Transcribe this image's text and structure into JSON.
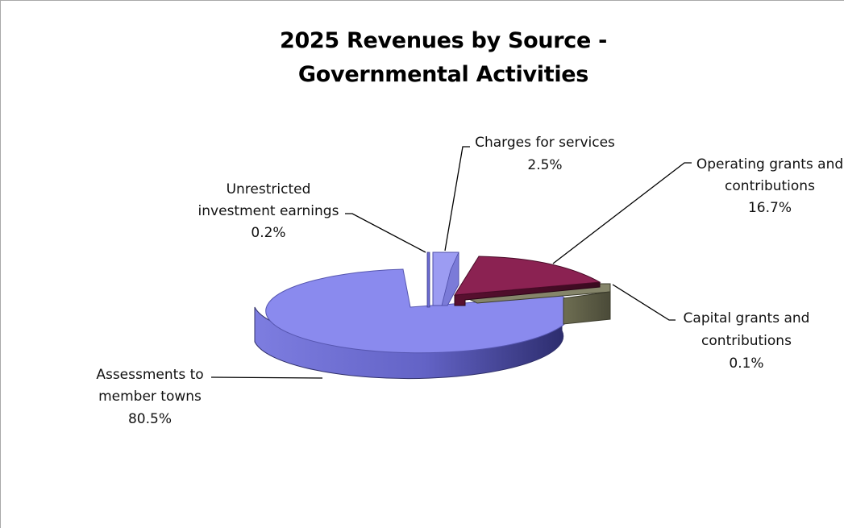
{
  "chart_data": {
    "type": "pie",
    "title": [
      "2025 Revenues by Source -",
      "Governmental Activities"
    ],
    "style": "3d-exploded",
    "slices": [
      {
        "label": [
          "Assessments to",
          "member towns"
        ],
        "value": 80.5,
        "display": "80.5%",
        "color": "#8a8aea"
      },
      {
        "label": [
          "Unrestricted",
          "investment earnings"
        ],
        "value": 0.2,
        "display": "0.2%",
        "color": "#6d6dd6"
      },
      {
        "label": [
          "Charges for services"
        ],
        "value": 2.5,
        "display": "2.5%",
        "color": "#9a9af0"
      },
      {
        "label": [
          "Operating grants and",
          "contributions"
        ],
        "value": 16.7,
        "display": "16.7%",
        "color": "#8b2252"
      },
      {
        "label": [
          "Capital grants and",
          "contributions"
        ],
        "value": 0.1,
        "display": "0.1%",
        "color": "#6b6b52"
      }
    ]
  }
}
